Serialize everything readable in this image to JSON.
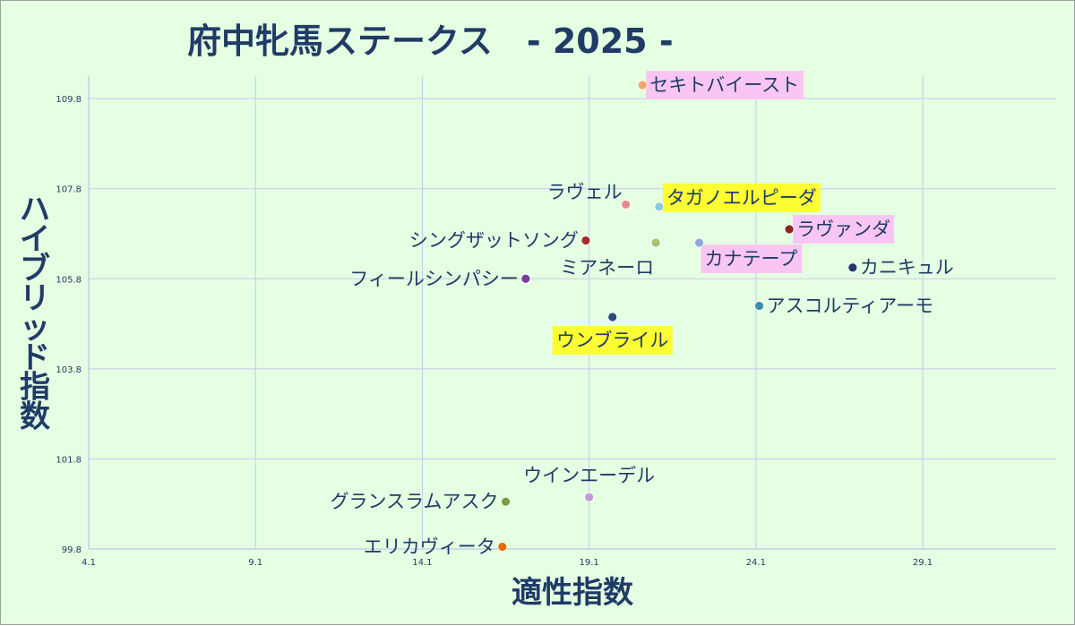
{
  "chart_data": {
    "type": "scatter",
    "title": "府中牝馬ステークス　- 2025 -",
    "xlabel": "適性指数",
    "ylabel": "ハイブリッド指数",
    "xlim": [
      4.1,
      33.1
    ],
    "ylim": [
      99.8,
      110.3
    ],
    "x_ticks": [
      "4.1",
      "9.1",
      "14.1",
      "19.1",
      "24.1",
      "29.1"
    ],
    "y_ticks": [
      "99.8",
      "101.8",
      "103.8",
      "105.8",
      "107.8",
      "109.8"
    ],
    "grid": true,
    "points": [
      {
        "name": "セキトバイースト",
        "x": 20.7,
        "y": 110.1,
        "color": "#f4a46a",
        "highlight": "#f9c6f3",
        "label_pos": "right"
      },
      {
        "name": "ラヴェル",
        "x": 20.2,
        "y": 107.45,
        "color": "#e88a90",
        "highlight": "",
        "label_pos": "top-left"
      },
      {
        "name": "タガノエルピーダ",
        "x": 21.2,
        "y": 107.4,
        "color": "#8ccbe0",
        "highlight": "#fdfd33",
        "label_pos": "top-right"
      },
      {
        "name": "ラヴァンダ",
        "x": 25.1,
        "y": 106.9,
        "color": "#8a2a1a",
        "highlight": "#f9c6f3",
        "label_pos": "right"
      },
      {
        "name": "シングザットソング",
        "x": 19.0,
        "y": 106.65,
        "color": "#a52a2a",
        "highlight": "",
        "label_pos": "left"
      },
      {
        "name": "ミアネーロ",
        "x": 21.1,
        "y": 106.6,
        "color": "#a5c26d",
        "highlight": "",
        "label_pos": "bottom-left"
      },
      {
        "name": "カナテープ",
        "x": 22.4,
        "y": 106.6,
        "color": "#8fa8d6",
        "highlight": "#f9c6f3",
        "label_pos": "bottom-right"
      },
      {
        "name": "カニキュル",
        "x": 27.0,
        "y": 106.05,
        "color": "#1f3864",
        "highlight": "",
        "label_pos": "right"
      },
      {
        "name": "フィールシンパシー",
        "x": 17.2,
        "y": 105.8,
        "color": "#7a3b9c",
        "highlight": "",
        "label_pos": "left"
      },
      {
        "name": "アスコルティアーモ",
        "x": 24.2,
        "y": 105.2,
        "color": "#3a8fb0",
        "highlight": "",
        "label_pos": "right"
      },
      {
        "name": "ウンブライル",
        "x": 19.8,
        "y": 104.95,
        "color": "#2a4a80",
        "highlight": "#fdfd33",
        "label_pos": "bottom"
      },
      {
        "name": "ウインエーデル",
        "x": 19.1,
        "y": 100.95,
        "color": "#c39bd3",
        "highlight": "",
        "label_pos": "top"
      },
      {
        "name": "グランスラムアスク",
        "x": 16.6,
        "y": 100.85,
        "color": "#7aa03c",
        "highlight": "",
        "label_pos": "left"
      },
      {
        "name": "エリカヴィータ",
        "x": 16.5,
        "y": 99.85,
        "color": "#e36c0a",
        "highlight": "",
        "label_pos": "left"
      }
    ]
  }
}
